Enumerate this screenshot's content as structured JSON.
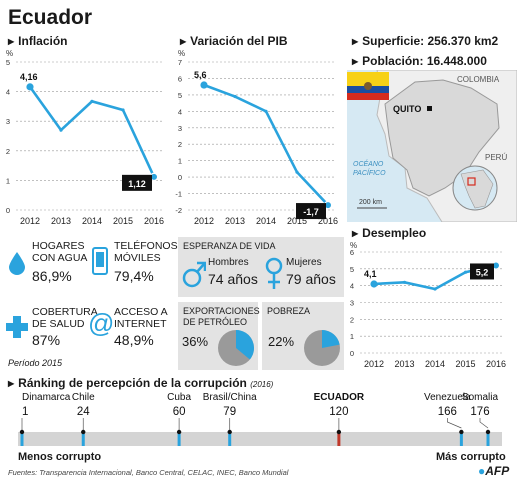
{
  "title": "Ecuador",
  "colors": {
    "accent": "#2aa3dd",
    "black": "#111111",
    "gray_box": "#e3e3e3",
    "red": "#c0392b"
  },
  "inflation": {
    "heading": "Inflación",
    "unit": "%"
  },
  "pib": {
    "heading": "Variación del PIB",
    "unit": "%"
  },
  "unemployment": {
    "heading": "Desempleo",
    "unit": "%"
  },
  "geo": {
    "surface": "Superficie: 256.370 km2",
    "population": "Población: 16.448.000",
    "map_labels": {
      "colombia": "COLOMBIA",
      "quito": "QUITO",
      "peru": "PERÚ",
      "ocean": "OCÉANO\nPACÍFICO",
      "scale": "200 km"
    }
  },
  "stats": {
    "water_label": "HOGARES\nCON AGUA",
    "water_value": "86,9%",
    "phones_label": "TELÉFONOS\nMÓVILES",
    "phones_value": "79,4%",
    "health_label": "COBERTURA\nDE SALUD",
    "health_value": "87%",
    "internet_label": "ACCESO A\nINTERNET",
    "internet_value": "48,9%",
    "period": "Período 2015"
  },
  "life": {
    "heading": "ESPERANZA DE VIDA",
    "men_label": "Hombres",
    "men_value": "74 años",
    "women_label": "Mujeres",
    "women_value": "79 años"
  },
  "oil": {
    "heading": "EXPORTACIONES\nDE PETRÓLEO",
    "value": "36%",
    "fraction": 0.36
  },
  "poverty": {
    "heading": "POBREZA",
    "value": "22%",
    "fraction": 0.22
  },
  "ranking": {
    "heading": "Ránking de percepción de la corrupción",
    "year": "(2016)",
    "items": [
      {
        "name": "Dinamarca",
        "rank": "1",
        "value": 1,
        "highlight": false
      },
      {
        "name": "Chile",
        "rank": "24",
        "value": 24,
        "highlight": false
      },
      {
        "name": "Cuba",
        "rank": "60",
        "value": 60,
        "highlight": false
      },
      {
        "name": "Brasil/China",
        "rank": "79",
        "value": 79,
        "highlight": false
      },
      {
        "name": "ECUADOR",
        "rank": "120",
        "value": 120,
        "highlight": true
      },
      {
        "name": "Venezuela",
        "rank": "166",
        "value": 166,
        "highlight": false
      },
      {
        "name": "Somalia",
        "rank": "176",
        "value": 176,
        "highlight": false
      }
    ],
    "min_label": "Menos corrupto",
    "max_label": "Más corrupto"
  },
  "source": "Fuentes: Transparencia Internacional, Banco Central, CELAC, INEC, Banco Mundial",
  "logo": "AFP",
  "chart_data": [
    {
      "type": "line",
      "title": "Inflación",
      "ylabel": "%",
      "x": [
        "2012",
        "2013",
        "2014",
        "2015",
        "2016"
      ],
      "series": [
        {
          "values": [
            4.16,
            2.7,
            3.67,
            3.38,
            1.12
          ]
        }
      ],
      "ylim": [
        0,
        5
      ],
      "yticks": [
        "0",
        "1",
        "2",
        "3",
        "4",
        "5"
      ],
      "data_labels": [
        {
          "index": 0,
          "text": "4,16"
        },
        {
          "index": 4,
          "text": "1,12",
          "boxed": true
        }
      ]
    },
    {
      "type": "line",
      "title": "Variación del PIB",
      "ylabel": "%",
      "x": [
        "2012",
        "2013",
        "2014",
        "2015",
        "2016"
      ],
      "series": [
        {
          "values": [
            5.6,
            4.9,
            4.0,
            0.3,
            -1.7
          ]
        }
      ],
      "ylim": [
        -2,
        7
      ],
      "yticks": [
        "-2",
        "-1",
        "0",
        "1",
        "2",
        "3",
        "4",
        "5",
        "6",
        "7"
      ],
      "data_labels": [
        {
          "index": 0,
          "text": "5,6"
        },
        {
          "index": 4,
          "text": "-1,7",
          "boxed": true
        }
      ]
    },
    {
      "type": "line",
      "title": "Desempleo",
      "ylabel": "%",
      "x": [
        "2012",
        "2013",
        "2014",
        "2015",
        "2016"
      ],
      "series": [
        {
          "values": [
            4.1,
            4.2,
            3.8,
            4.8,
            5.2
          ]
        }
      ],
      "ylim": [
        0,
        6
      ],
      "yticks": [
        "0",
        "1",
        "2",
        "3",
        "4",
        "5",
        "6"
      ],
      "data_labels": [
        {
          "index": 0,
          "text": "4,1"
        },
        {
          "index": 4,
          "text": "5,2",
          "boxed": true
        }
      ]
    }
  ]
}
